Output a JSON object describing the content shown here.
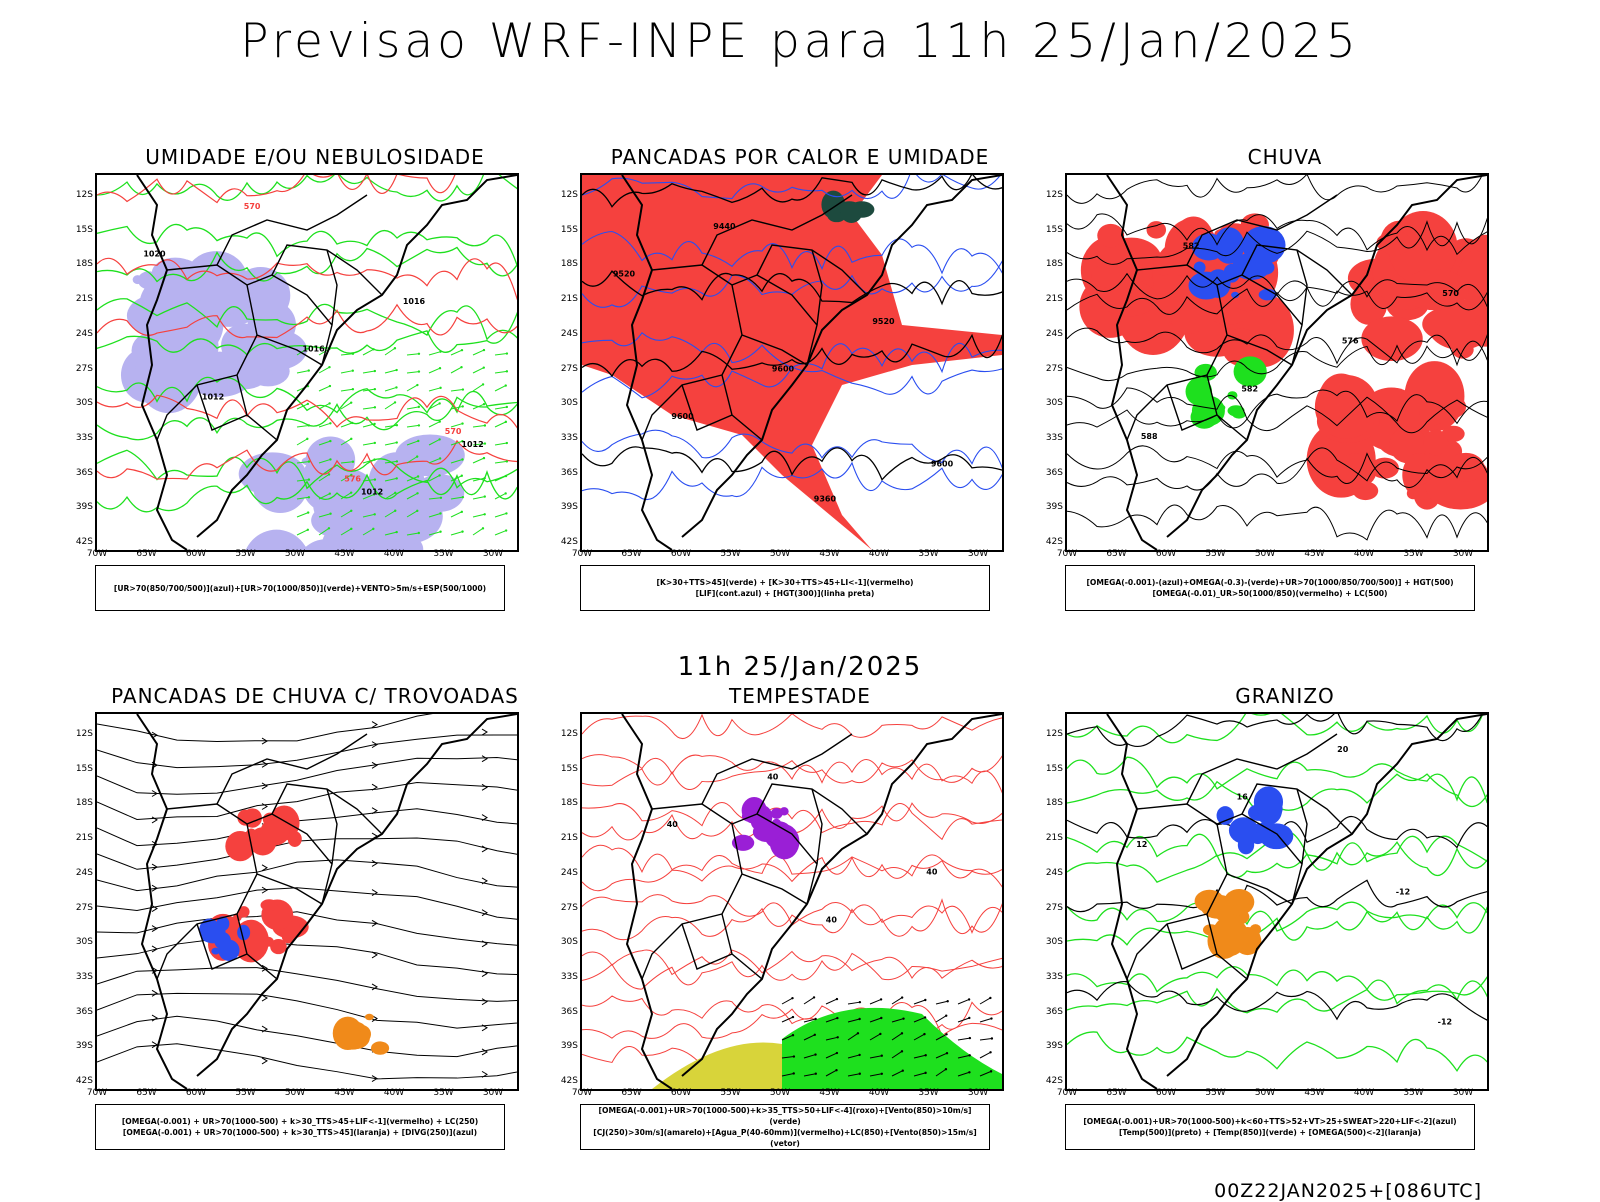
{
  "header": {
    "title": "Previsao WRF-INPE  para 11h 25/Jan/2025",
    "mid_date": "11h 25/Jan/2025",
    "run_id": "00Z22JAN2025+[086UTC]"
  },
  "axes": {
    "lat_ticks": [
      "12S",
      "15S",
      "18S",
      "21S",
      "24S",
      "27S",
      "30S",
      "33S",
      "36S",
      "39S",
      "42S"
    ],
    "lon_ticks": [
      "70W",
      "65W",
      "60W",
      "55W",
      "50W",
      "45W",
      "40W",
      "35W",
      "30W"
    ]
  },
  "colors": {
    "red": "#f5413e",
    "blue": "#2a4ef0",
    "green": "#1ee01e",
    "lavender": "#b7b2f0",
    "orange": "#f08a1a",
    "purple": "#9a1fd6",
    "yellow": "#d8d43a",
    "darkteal": "#1d4a3e",
    "black": "#000000"
  },
  "panels": [
    {
      "title": "UMIDADE E/OU NEBULOSIDADE",
      "legend": [
        "[UR>70(850/700/500)](azul)+[UR>70(1000/850)](verde)+VENTO>5m/s+ESP(500/1000)"
      ],
      "labels": [
        "1012",
        "1012",
        "1012",
        "1016",
        "1016",
        "1020",
        "570",
        "576",
        "570"
      ]
    },
    {
      "title": "PANCADAS POR CALOR E UMIDADE",
      "legend": [
        "[K>30+TTS>45](verde) + [K>30+TTS>45+LI<-1](vermelho)",
        "[LIF](cont.azul) + [HGT(300)](linha preta)"
      ],
      "labels": [
        "9600",
        "9600",
        "9600",
        "9520",
        "9520",
        "9440",
        "9360"
      ]
    },
    {
      "title": "CHUVA",
      "legend": [
        "[OMEGA(-0.001)-(azul)+OMEGA(-0.3)-(verde)+UR>70(1000/850/700/500)] + HGT(500)",
        "[OMEGA(-0.01)_UR>50(1000/850)(vermelho) + LC(500)"
      ],
      "labels": [
        "588",
        "582",
        "576",
        "570",
        "582"
      ]
    },
    {
      "title": "PANCADAS DE CHUVA C/ TROVOADAS",
      "legend": [
        "[OMEGA(-0.001) + UR>70(1000-500) + k>30_TTS>45+LIF<-1](vermelho) + LC(250)",
        "[OMEGA(-0.001) + UR>70(1000-500) + k>30_TTS>45](laranja) + [DIVG(250)](azul)"
      ],
      "labels": []
    },
    {
      "title": "TEMPESTADE",
      "legend": [
        "[OMEGA(-0.001)+UR>70(1000-500)+k>35_TTS>50+LIF<-4](roxo)+[Vento(850)>10m/s](verde)",
        "[CJ(250)>30m/s](amarelo)+[Agua_P(40-60mm)](vermelho)+LC(850)+[Vento(850)>15m/s](vetor)"
      ],
      "labels": [
        "40",
        "40",
        "40",
        "40"
      ]
    },
    {
      "title": "GRANIZO",
      "legend": [
        "[OMEGA(-0.001)+UR>70(1000-500)+k<60+TTS>52+VT>25+SWEAT>220+LIF<-2](azul)",
        "[Temp(500)](preto) + [Temp(850)](verde) + [OMEGA(500)<-2](laranja)"
      ],
      "labels": [
        "-12",
        "12",
        "16",
        "20",
        "-12"
      ]
    }
  ]
}
